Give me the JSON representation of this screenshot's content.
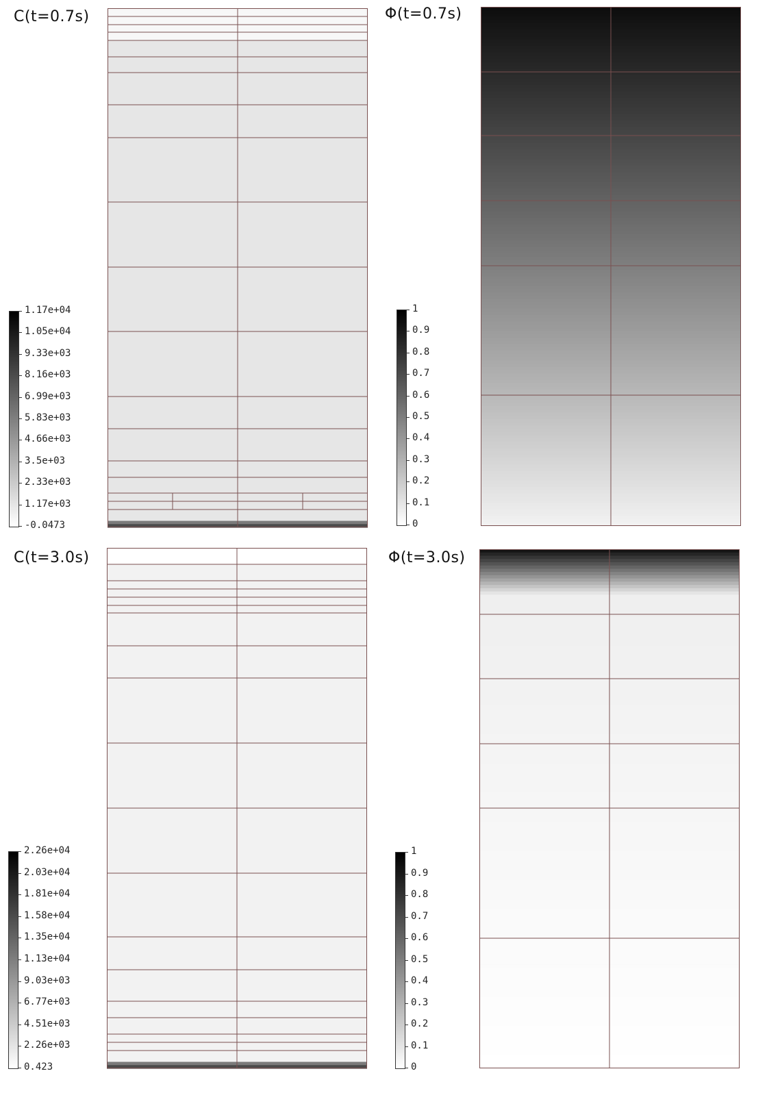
{
  "panels": [
    {
      "id": "c-07",
      "title": "C(t=0.7s)",
      "colorbar": {
        "labels": [
          "1.17e+04",
          "1.05e+04",
          "9.33e+03",
          "8.16e+03",
          "6.99e+03",
          "5.83e+03",
          "4.66e+03",
          "3.5e+03",
          "2.33e+03",
          "1.17e+03",
          "-0.0473"
        ],
        "max": 11700,
        "min": -0.0473
      }
    },
    {
      "id": "phi-07",
      "title": "Φ(t=0.7s)",
      "colorbar": {
        "labels": [
          "1",
          "0.9",
          "0.8",
          "0.7",
          "0.6",
          "0.5",
          "0.4",
          "0.3",
          "0.2",
          "0.1",
          "0"
        ],
        "max": 1,
        "min": 0
      }
    },
    {
      "id": "c-30",
      "title": "C(t=3.0s)",
      "colorbar": {
        "labels": [
          "2.26e+04",
          "2.03e+04",
          "1.81e+04",
          "1.58e+04",
          "1.35e+04",
          "1.13e+04",
          "9.03e+03",
          "6.77e+03",
          "4.51e+03",
          "2.26e+03",
          "0.423"
        ],
        "max": 22600,
        "min": 0.423
      }
    },
    {
      "id": "phi-30",
      "title": "Φ(t=3.0s)",
      "colorbar": {
        "labels": [
          "1",
          "0.9",
          "0.8",
          "0.7",
          "0.6",
          "0.5",
          "0.4",
          "0.3",
          "0.2",
          "0.1",
          "0"
        ],
        "max": 1,
        "min": 0
      }
    }
  ],
  "colors": {
    "mesh_line": "#7a5050",
    "colormap_low": "#ffffff",
    "colormap_high": "#000000"
  }
}
